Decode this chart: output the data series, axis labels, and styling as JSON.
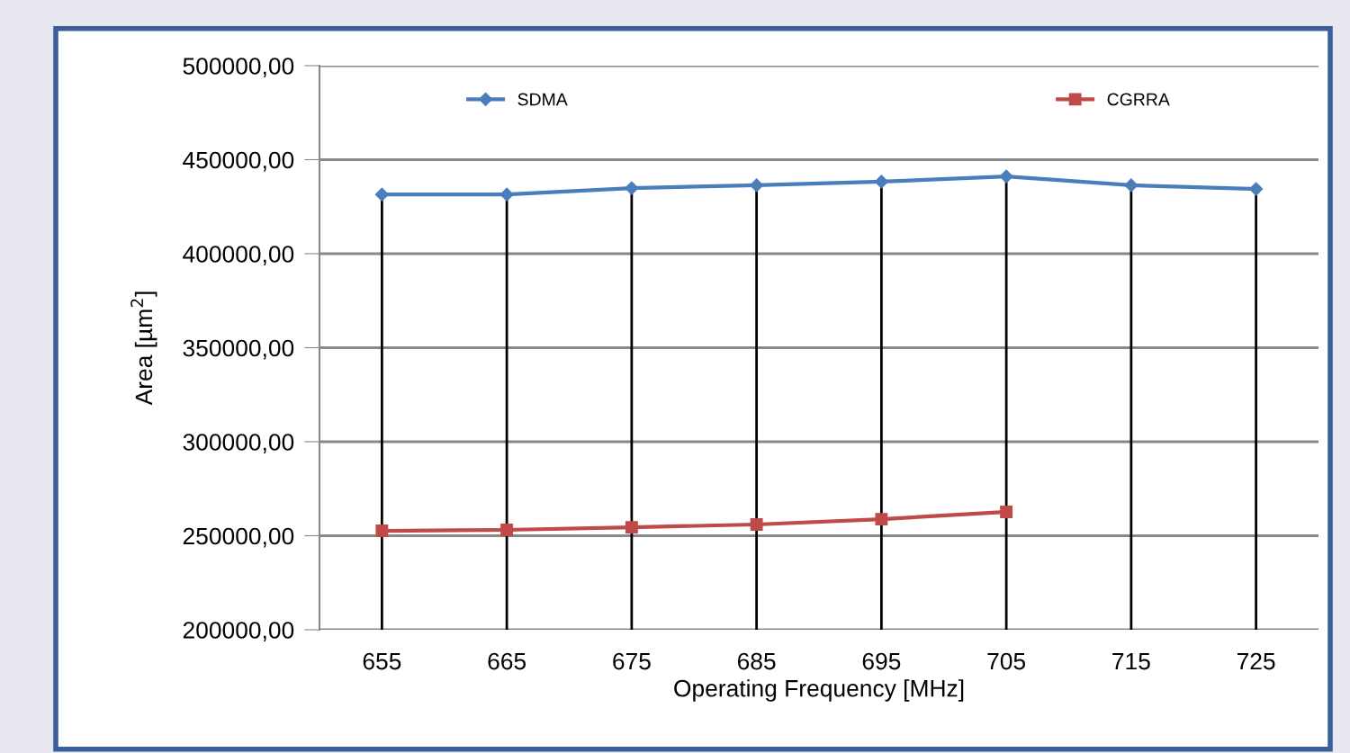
{
  "chart_data": {
    "type": "line",
    "xlabel": "Operating Frequency [MHz]",
    "ylabel": "Area [µm$^{2}$]",
    "categories": [
      "655",
      "665",
      "675",
      "685",
      "695",
      "705",
      "715",
      "725"
    ],
    "series": [
      {
        "name": "SDMA",
        "color": "#4a7ebb",
        "marker": "diamond",
        "values": [
          431500,
          431500,
          434900,
          436400,
          438300,
          441100,
          436400,
          434400
        ]
      },
      {
        "name": "CGRRA",
        "color": "#be4b48",
        "marker": "square",
        "values": [
          252600,
          253100,
          254500,
          256000,
          258800,
          262700,
          null,
          null
        ]
      }
    ],
    "ylim": [
      200000,
      500000
    ],
    "yticks": [
      {
        "value": 200000,
        "label": "200000,00"
      },
      {
        "value": 250000,
        "label": "250000,00"
      },
      {
        "value": 300000,
        "label": "300000,00"
      },
      {
        "value": 350000,
        "label": "350000,00"
      },
      {
        "value": 400000,
        "label": "400000,00"
      },
      {
        "value": 450000,
        "label": "450000,00"
      },
      {
        "value": 500000,
        "label": "500000,00"
      }
    ],
    "grid": true,
    "legend": "top",
    "line_style": "solid"
  }
}
